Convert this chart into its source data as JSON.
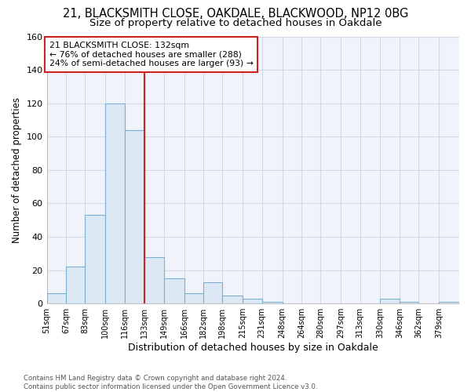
{
  "title1": "21, BLACKSMITH CLOSE, OAKDALE, BLACKWOOD, NP12 0BG",
  "title2": "Size of property relative to detached houses in Oakdale",
  "xlabel": "Distribution of detached houses by size in Oakdale",
  "ylabel": "Number of detached properties",
  "bin_labels": [
    "51sqm",
    "67sqm",
    "83sqm",
    "100sqm",
    "116sqm",
    "133sqm",
    "149sqm",
    "166sqm",
    "182sqm",
    "198sqm",
    "215sqm",
    "231sqm",
    "248sqm",
    "264sqm",
    "280sqm",
    "297sqm",
    "313sqm",
    "330sqm",
    "346sqm",
    "362sqm",
    "379sqm"
  ],
  "bin_edges": [
    51,
    67,
    83,
    100,
    116,
    133,
    149,
    166,
    182,
    198,
    215,
    231,
    248,
    264,
    280,
    297,
    313,
    330,
    346,
    362,
    379
  ],
  "bar_heights": [
    6,
    22,
    53,
    120,
    104,
    28,
    15,
    6,
    13,
    5,
    3,
    1,
    0,
    0,
    0,
    0,
    0,
    3,
    1,
    0,
    1
  ],
  "bar_color": "#dce9f5",
  "bar_edge_color": "#7aafd4",
  "vline_x": 133,
  "vline_color": "#cc2222",
  "annotation_text": "21 BLACKSMITH CLOSE: 132sqm\n← 76% of detached houses are smaller (288)\n24% of semi-detached houses are larger (93) →",
  "annotation_box_color": "#ffffff",
  "annotation_box_edge": "#cc2222",
  "ylim": [
    0,
    160
  ],
  "yticks": [
    0,
    20,
    40,
    60,
    80,
    100,
    120,
    140,
    160
  ],
  "footnote": "Contains HM Land Registry data © Crown copyright and database right 2024.\nContains public sector information licensed under the Open Government Licence v3.0.",
  "bg_color": "#ffffff",
  "plot_bg_color": "#f0f4fa",
  "grid_color": "#d0d8e8",
  "title1_fontsize": 10.5,
  "title2_fontsize": 9.5,
  "xlabel_fontsize": 9,
  "ylabel_fontsize": 8.5
}
